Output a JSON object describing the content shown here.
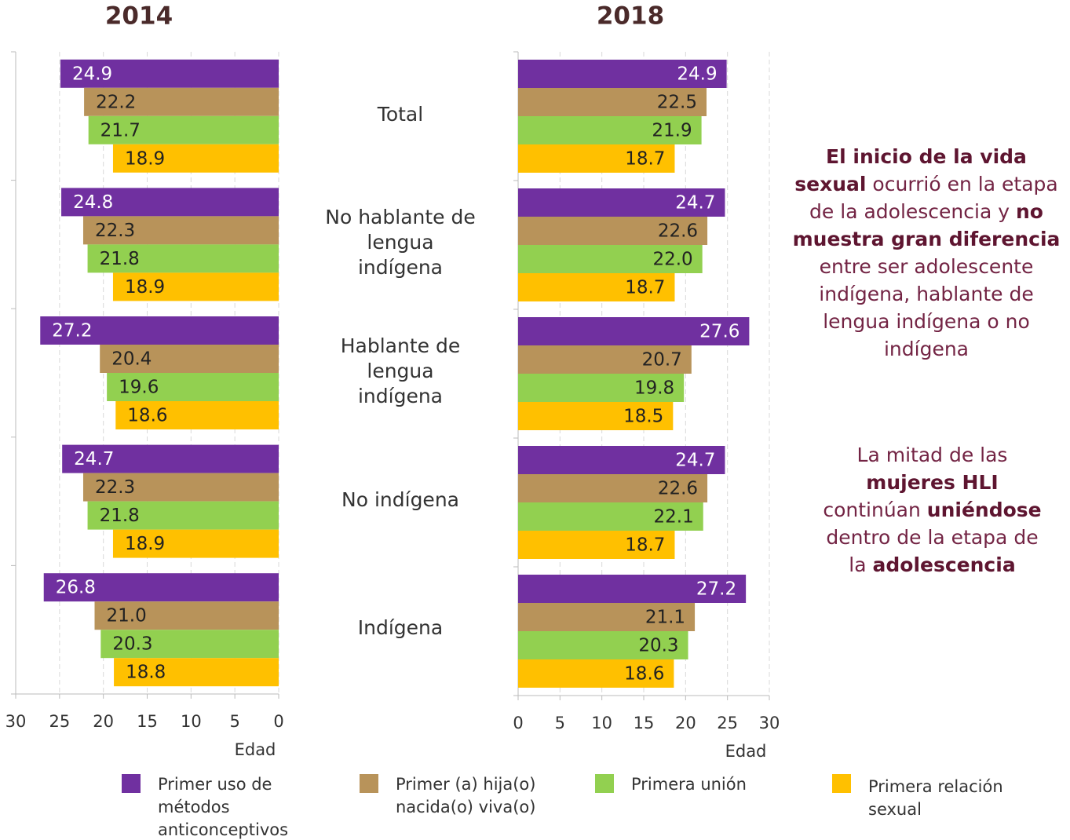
{
  "chart_data": [
    {
      "type": "bar",
      "orientation": "horizontal",
      "title": "2014",
      "xlabel": "Edad",
      "reversed": true,
      "categories": [
        "Total",
        "No hablante de lengua indígena",
        "Hablante de lengua indígena",
        "No indígena",
        "Indígena"
      ],
      "xlim": [
        0,
        30
      ],
      "xticks": [
        0,
        5,
        10,
        15,
        20,
        25,
        30
      ],
      "grid": true,
      "series": [
        {
          "name": "Primer uso de métodos anticonceptivos",
          "color": "#7030a0",
          "values": [
            24.9,
            24.8,
            27.2,
            24.7,
            26.8
          ]
        },
        {
          "name": "Primer (a) hija(o) nacida(o) viva(o)",
          "color": "#b8935a",
          "values": [
            22.2,
            22.3,
            20.4,
            22.3,
            21.0
          ],
          "value_labels": [
            "22.2",
            "22.3",
            "20.4",
            "22.3",
            "21.0"
          ]
        },
        {
          "name": "Primera unión",
          "color": "#92d050",
          "values": [
            21.7,
            21.8,
            19.6,
            21.8,
            20.3
          ]
        },
        {
          "name": "Primera relación sexual",
          "color": "#ffc000",
          "values": [
            18.9,
            18.9,
            18.6,
            18.9,
            18.8
          ]
        }
      ]
    },
    {
      "type": "bar",
      "orientation": "horizontal",
      "title": "2018",
      "xlabel": "Edad",
      "reversed": false,
      "xlim": [
        0,
        30
      ],
      "xticks": [
        0,
        5,
        10,
        15,
        20,
        25,
        30
      ],
      "grid": true,
      "series": [
        {
          "color": "#7030a0",
          "values": [
            24.9,
            24.7,
            27.6,
            24.7,
            27.2
          ]
        },
        {
          "color": "#b8935a",
          "values": [
            22.5,
            22.6,
            20.7,
            22.6,
            21.1
          ]
        },
        {
          "color": "#92d050",
          "values": [
            21.9,
            22.0,
            19.8,
            22.1,
            20.3
          ],
          "value_labels": [
            "21.9",
            "22.0",
            "19.8",
            "22.1",
            "20.3"
          ]
        },
        {
          "color": "#ffc000",
          "values": [
            18.7,
            18.7,
            18.5,
            18.7,
            18.6
          ]
        }
      ]
    }
  ],
  "notes": [
    [
      {
        "text": "El inicio de la vida sexual",
        "bold": true
      },
      {
        "text": " ocurrió en la etapa de la adolescencia y "
      },
      {
        "text": "no muestra gran diferencia",
        "bold": true
      },
      {
        "text": " entre ser adolescente indígena, hablante de lengua indígena o no indígena"
      }
    ],
    [
      {
        "text": "La mitad de las "
      },
      {
        "text": "mujeres HLI",
        "bold": true
      },
      {
        "text": " continúan "
      },
      {
        "text": "uniéndose",
        "bold": true
      },
      {
        "text": " dentro de la etapa de la "
      },
      {
        "text": "adolescencia",
        "bold": true
      }
    ]
  ]
}
